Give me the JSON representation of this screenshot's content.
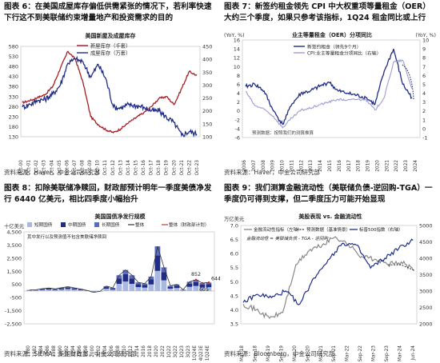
{
  "panels": [
    {
      "caption": "图表 6：在美国成屋库存偏低供需紧张的情况下，若利率快速下行这不到美联储约束增量地产和投资需求的目的",
      "source": "资料来源：Haver，中金公司研究部"
    },
    {
      "caption": "图表 7：新签约租金领先 CPI 中大权重项等量租金（OER）大约三个季度，如果只参考该指标，1Q24 租金同比或上行",
      "source": "资料来源：Haver，中金公司研究部"
    },
    {
      "caption": "图表 8：扣除美联储净赎回，财政部预计明年一季度美债净发行 6440 亿美元，相比四季度小幅抬升",
      "source": "资料来源：SIFMA，美国财政部，中金公司研究部"
    },
    {
      "caption": "图表 9：我们测算金融流动性（美联储负债-逆回购-TGA）一季度仍可得到支撑，但二季度压力可能开始显现",
      "source": "资料来源：Bloomberg，中金公司研究部"
    }
  ],
  "chart_data": [
    {
      "type": "line",
      "title": "美国新屋及成屋库存",
      "x": [
        "Oct-00",
        "Oct-01",
        "Oct-02",
        "Oct-03",
        "Oct-04",
        "Oct-05",
        "Oct-06",
        "Oct-07",
        "Oct-08",
        "Oct-09",
        "Oct-10",
        "Oct-11",
        "Oct-12",
        "Oct-13",
        "Oct-14",
        "Oct-15",
        "Oct-16",
        "Oct-17",
        "Oct-18",
        "Oct-19",
        "Oct-20",
        "Oct-21",
        "Oct-22",
        "Oct-23"
      ],
      "left_ticks": [
        "580",
        "530",
        "480",
        "430",
        "380",
        "330",
        "280",
        "230",
        "180",
        "130"
      ],
      "right_ticks": [
        "450",
        "400",
        "350",
        "300",
        "250",
        "200",
        "150",
        "100"
      ],
      "series": [
        {
          "name": "新屋库存（千套）",
          "axis": "left",
          "color": "#a51c24",
          "values": [
            300,
            310,
            325,
            340,
            380,
            470,
            555,
            515,
            400,
            230,
            190,
            165,
            150,
            170,
            200,
            225,
            250,
            280,
            320,
            330,
            290,
            370,
            455,
            435
          ]
        },
        {
          "name": "成屋库存（万套）",
          "axis": "right",
          "color": "#1f2d86",
          "values": [
            215,
            225,
            240,
            245,
            265,
            300,
            385,
            400,
            390,
            330,
            380,
            325,
            215,
            210,
            225,
            220,
            215,
            200,
            200,
            175,
            155,
            105,
            120,
            110
          ]
        }
      ],
      "ylim_left": [
        130,
        580
      ],
      "ylim_right": [
        100,
        450
      ]
    },
    {
      "type": "line",
      "title": "业主等量租金（OER）分项同比",
      "left_unit": "(YoY, %)",
      "right_unit": "(YoY, %)",
      "left_ticks": [
        "16",
        "14",
        "12",
        "10",
        "8",
        "6",
        "4",
        "2",
        "0",
        "-2",
        "-4",
        "-6"
      ],
      "right_ticks": [
        "10",
        "9",
        "8",
        "7",
        "6",
        "5",
        "4",
        "3",
        "2",
        "1",
        "0",
        "-1"
      ],
      "x": [
        "2006",
        "2007",
        "2008",
        "2009",
        "2010",
        "2011",
        "2012",
        "2013",
        "2014",
        "2015",
        "2016",
        "2017",
        "2018",
        "2019",
        "2020",
        "2021",
        "2022",
        "2023",
        "2024"
      ],
      "annotation": "预测数据：按照我们的测算推算",
      "series": [
        {
          "name": "新签约租金（领先9个月）",
          "axis": "left",
          "color": "#1f2d86",
          "values": [
            5.5,
            6.0,
            4.5,
            0.0,
            -3.0,
            1.5,
            4.0,
            4.5,
            5.5,
            6.5,
            4.5,
            4.0,
            3.5,
            3.0,
            1.5,
            9.0,
            14.0,
            6.0,
            3.0
          ]
        },
        {
          "name": "CPI:业主等量租金分项同比（右轴）",
          "axis": "right",
          "color": "#9b9bd6",
          "values": [
            4.2,
            2.6,
            2.2,
            1.4,
            0.1,
            1.2,
            2.1,
            2.3,
            2.7,
            3.0,
            3.3,
            3.2,
            3.3,
            3.3,
            2.1,
            3.5,
            7.5,
            7.7,
            4.5
          ]
        }
      ],
      "ylim_left": [
        -6,
        16
      ],
      "ylim_right": [
        -1,
        10
      ]
    },
    {
      "type": "bar",
      "title": "美国国债净发行规模",
      "y_unit": "十亿美元",
      "subtitle": "其中发行以及预测值不包含美联储净赎回",
      "y_ticks": [
        "4,500",
        "3,500",
        "2,500",
        "1,500",
        "500",
        "-500",
        "-1,500",
        "-2,500"
      ],
      "categories": [
        "1980",
        "1982",
        "1984",
        "1986",
        "1988",
        "1990",
        "1992",
        "1994",
        "1996",
        "1998",
        "2000",
        "2002",
        "2004",
        "2006",
        "2008",
        "2010",
        "2012",
        "2014",
        "2016",
        "2018",
        "2020",
        "2022",
        "1Q22",
        "3Q22",
        "1Q23",
        "3Q23",
        "1Q24E",
        "4Q23E",
        "1Q24E"
      ],
      "series": [
        {
          "name": "短期国债",
          "color": "#a8b8e0"
        },
        {
          "name": "中期国债",
          "color": "#1f2d86"
        },
        {
          "name": "长期国债",
          "color": "#5a6cc0"
        },
        {
          "name": "整体",
          "color": "#333333"
        },
        {
          "name": "整体（财政部计划）",
          "color": "#c0392b"
        }
      ],
      "totals": [
        80,
        90,
        180,
        230,
        160,
        250,
        330,
        240,
        150,
        40,
        -100,
        -30,
        370,
        240,
        1200,
        1600,
        1200,
        650,
        570,
        1100,
        3400,
        1800,
        400,
        500,
        100,
        700,
        852,
        605,
        644
      ],
      "data_labels": [
        "852",
        "605",
        "644"
      ],
      "ylim": [
        -2500,
        4500
      ]
    },
    {
      "type": "line",
      "title": "美股表现 vs. 金融流动性",
      "y_unit": "万亿美元",
      "legend_note": "金融流动性 = 美联储负债 - TGA - 逆回购",
      "left_ticks": [
        "7.0",
        "6.5",
        "6.0",
        "5.5",
        "5.0",
        "4.5",
        "4.0",
        "3.5"
      ],
      "right_ticks": [
        "5000",
        "4500",
        "4000",
        "3500",
        "3000",
        "2500",
        "2000"
      ],
      "x": [
        "Mar-18",
        "Sep-18",
        "Mar-19",
        "Sep-19",
        "Mar-20",
        "Sep-20",
        "Mar-21",
        "Sep-21",
        "Mar-22",
        "Sep-22",
        "Mar-23",
        "Sep-23",
        "Mar-24",
        "Jun-24"
      ],
      "series": [
        {
          "name": "金融流动性指标（左轴）",
          "axis": "left",
          "color": "#888888",
          "values": [
            4.2,
            4.0,
            3.7,
            3.9,
            5.6,
            6.1,
            6.3,
            6.6,
            6.3,
            5.9,
            5.8,
            5.6,
            5.7,
            5.4
          ]
        },
        {
          "name": "预测数据（基准情景）",
          "axis": "left",
          "color": "#333333",
          "dashed": true,
          "values": [
            null,
            null,
            null,
            null,
            null,
            null,
            null,
            null,
            null,
            null,
            null,
            5.6,
            5.6,
            5.4
          ]
        },
        {
          "name": "标普500指数（右轴）",
          "axis": "right",
          "color": "#1f2d86",
          "values": [
            2650,
            2900,
            2800,
            3000,
            2600,
            3400,
            3950,
            4450,
            4400,
            3700,
            4000,
            4300,
            4550,
            null
          ]
        }
      ],
      "ylim_left": [
        3.5,
        7.0
      ],
      "ylim_right": [
        2000,
        5000
      ]
    }
  ]
}
